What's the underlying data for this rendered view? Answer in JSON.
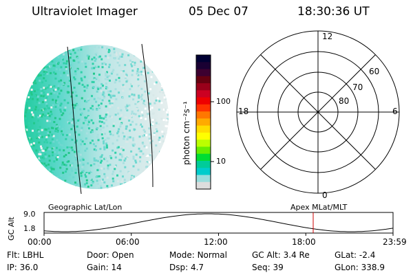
{
  "header": {
    "instrument": "Ultraviolet Imager",
    "date": "05 Dec 07",
    "time": "18:30:36 UT"
  },
  "colorbar": {
    "unit_label": "photon cm⁻²s⁻¹",
    "tick_labels": [
      "100",
      "10"
    ],
    "colors": [
      "#000033",
      "#1a0033",
      "#3d0030",
      "#660010",
      "#99001a",
      "#cc0022",
      "#ee0000",
      "#ff3300",
      "#ff7700",
      "#ffaa00",
      "#ffdd00",
      "#ffff00",
      "#bbff00",
      "#66ee00",
      "#00dd33",
      "#00cc99",
      "#00cccc",
      "#99dddd",
      "#dddddd"
    ]
  },
  "polar_plot": {
    "mlt_labels": {
      "top": "12",
      "left": "18",
      "right": "6",
      "bottom": "0"
    },
    "lat_labels": [
      "60",
      "70",
      "80"
    ]
  },
  "timeline": {
    "left_label": "Geographic Lat/Lon",
    "right_label": "Apex MLat/MLT",
    "y_axis_title": "GC Alt",
    "y_ticks": [
      "9.0",
      "1.8"
    ],
    "x_ticks": [
      "00:00",
      "06:00",
      "12:00",
      "18:00",
      "23:59"
    ],
    "current_time_hours": 18.51,
    "marker_color": "#cc0000"
  },
  "status": {
    "row1": [
      {
        "label": "Flt:",
        "value": "LBHL"
      },
      {
        "label": "Door:",
        "value": "Open"
      },
      {
        "label": "Mode:",
        "value": "Normal"
      },
      {
        "label": "GC Alt:",
        "value": "3.4 Re"
      },
      {
        "label": "GLat:",
        "value": "-2.4"
      }
    ],
    "row2": [
      {
        "label": "IP:",
        "value": "36.0"
      },
      {
        "label": "Gain:",
        "value": "14"
      },
      {
        "label": "Dsp:",
        "value": "4.7"
      },
      {
        "label": "Seq:",
        "value": "39"
      },
      {
        "label": "GLon:",
        "value": "338.9"
      }
    ]
  }
}
